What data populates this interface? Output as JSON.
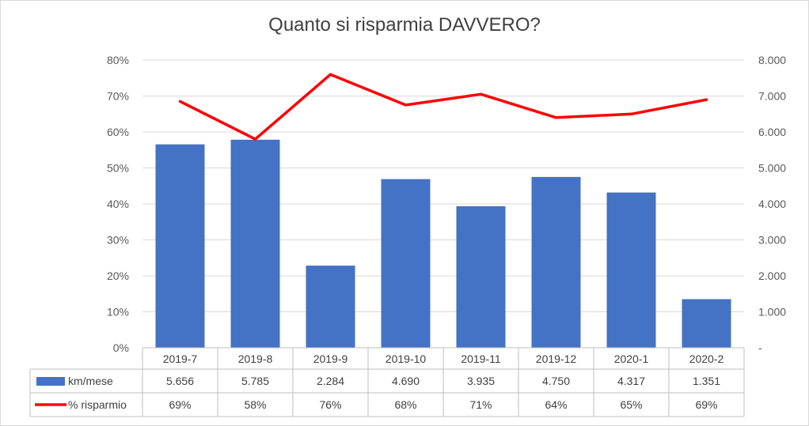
{
  "chart_data": {
    "type": "bar",
    "title": "Quanto si risparmia DAVVERO?",
    "categories": [
      "2019-7",
      "2019-8",
      "2019-9",
      "2019-10",
      "2019-11",
      "2019-12",
      "2020-1",
      "2020-2"
    ],
    "series": [
      {
        "name": "km/mese",
        "type": "bar",
        "axis": "right",
        "values": [
          5656,
          5785,
          2284,
          4690,
          3935,
          4750,
          4317,
          1351
        ],
        "labels": [
          "5.656",
          "5.785",
          "2.284",
          "4.690",
          "3.935",
          "4.750",
          "4.317",
          "1.351"
        ],
        "color": "#4472C4"
      },
      {
        "name": "% risparmio",
        "type": "line",
        "axis": "left",
        "values": [
          0.685,
          0.58,
          0.76,
          0.675,
          0.705,
          0.64,
          0.65,
          0.69
        ],
        "labels": [
          "69%",
          "58%",
          "76%",
          "68%",
          "71%",
          "64%",
          "65%",
          "69%"
        ],
        "color": "#FF0000"
      }
    ],
    "y_left": {
      "lim": [
        0,
        0.8
      ],
      "ticks": [
        "0%",
        "10%",
        "20%",
        "30%",
        "40%",
        "50%",
        "60%",
        "70%",
        "80%"
      ]
    },
    "y_right": {
      "lim": [
        0,
        8000
      ],
      "ticks": [
        "-",
        "1.000",
        "2.000",
        "3.000",
        "4.000",
        "5.000",
        "6.000",
        "7.000",
        "8.000"
      ]
    },
    "grid": true,
    "legend": "data-table"
  }
}
